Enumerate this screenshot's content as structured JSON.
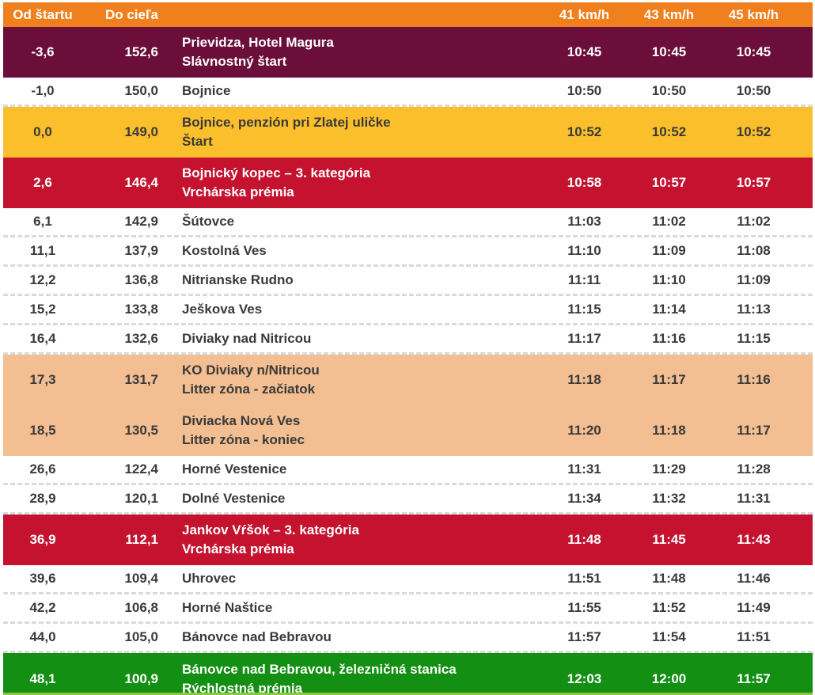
{
  "header": {
    "from_start": "Od štartu",
    "to_finish": "Do cieľa",
    "place": "",
    "speed_41": "41 km/h",
    "speed_43": "43 km/h",
    "speed_45": "45 km/h"
  },
  "rows": [
    {
      "type": "ceremonial-start",
      "from": "-3,6",
      "to": "152,6",
      "place": [
        "Prievidza, Hotel Magura",
        "Slávnostný štart"
      ],
      "times": [
        "10:45",
        "10:45",
        "10:45"
      ]
    },
    {
      "type": "plain",
      "from": "-1,0",
      "to": "150,0",
      "place": [
        "Bojnice"
      ],
      "times": [
        "10:50",
        "10:50",
        "10:50"
      ]
    },
    {
      "type": "start",
      "from": "0,0",
      "to": "149,0",
      "place": [
        "Bojnice, penzión pri Zlatej uličke",
        "Štart"
      ],
      "times": [
        "10:52",
        "10:52",
        "10:52"
      ]
    },
    {
      "type": "kom",
      "from": "2,6",
      "to": "146,4",
      "place": [
        "Bojnický kopec – 3. kategória",
        "Vrchárska prémia"
      ],
      "times": [
        "10:58",
        "10:57",
        "10:57"
      ]
    },
    {
      "type": "plain",
      "from": "6,1",
      "to": "142,9",
      "place": [
        "Šútovce"
      ],
      "times": [
        "11:03",
        "11:02",
        "11:02"
      ]
    },
    {
      "type": "plain",
      "from": "11,1",
      "to": "137,9",
      "place": [
        "Kostolná Ves"
      ],
      "times": [
        "11:10",
        "11:09",
        "11:08"
      ]
    },
    {
      "type": "plain",
      "from": "12,2",
      "to": "136,8",
      "place": [
        "Nitrianske Rudno"
      ],
      "times": [
        "11:11",
        "11:10",
        "11:09"
      ]
    },
    {
      "type": "plain",
      "from": "15,2",
      "to": "133,8",
      "place": [
        "Ješkova Ves"
      ],
      "times": [
        "11:15",
        "11:14",
        "11:13"
      ]
    },
    {
      "type": "plain",
      "from": "16,4",
      "to": "132,6",
      "place": [
        "Diviaky nad Nitricou"
      ],
      "times": [
        "11:17",
        "11:16",
        "11:15"
      ]
    },
    {
      "type": "litter",
      "from": "17,3",
      "to": "131,7",
      "place": [
        "KO Diviaky n/Nitricou",
        "Litter zóna - začiatok"
      ],
      "times": [
        "11:18",
        "11:17",
        "11:16"
      ]
    },
    {
      "type": "litter",
      "from": "18,5",
      "to": "130,5",
      "place": [
        "Diviacka Nová Ves",
        "Litter zóna - koniec"
      ],
      "times": [
        "11:20",
        "11:18",
        "11:17"
      ]
    },
    {
      "type": "plain",
      "from": "26,6",
      "to": "122,4",
      "place": [
        "Horné Vestenice"
      ],
      "times": [
        "11:31",
        "11:29",
        "11:28"
      ]
    },
    {
      "type": "plain",
      "from": "28,9",
      "to": "120,1",
      "place": [
        "Dolné Vestenice"
      ],
      "times": [
        "11:34",
        "11:32",
        "11:31"
      ]
    },
    {
      "type": "kom",
      "from": "36,9",
      "to": "112,1",
      "place": [
        "Jankov Vŕšok – 3. kategória",
        "Vrchárska prémia"
      ],
      "times": [
        "11:48",
        "11:45",
        "11:43"
      ]
    },
    {
      "type": "plain",
      "from": "39,6",
      "to": "109,4",
      "place": [
        "Uhrovec"
      ],
      "times": [
        "11:51",
        "11:48",
        "11:46"
      ]
    },
    {
      "type": "plain",
      "from": "42,2",
      "to": "106,8",
      "place": [
        "Horné Naštice"
      ],
      "times": [
        "11:55",
        "11:52",
        "11:49"
      ]
    },
    {
      "type": "plain",
      "from": "44,0",
      "to": "105,0",
      "place": [
        "Bánovce nad Bebravou"
      ],
      "times": [
        "11:57",
        "11:54",
        "11:51"
      ]
    },
    {
      "type": "sprint",
      "from": "48,1",
      "to": "100,9",
      "place": [
        "Bánovce nad Bebravou, železničná stanica",
        "Rýchlostná prémia"
      ],
      "times": [
        "12:03",
        "12:00",
        "11:57"
      ]
    }
  ],
  "colors": {
    "header_bg": "#F0801E",
    "maroon_bg": "#6B0E3A",
    "yellow_bg": "#FBBF2B",
    "red_bg": "#C5122F",
    "peach_bg": "#F2BE92",
    "green_bg": "#138F13",
    "text_dark": "#3A3A3A",
    "text_light": "#FFFFFF",
    "dash_color": "#D8DBDE",
    "strip_color": "#8DC63F"
  }
}
